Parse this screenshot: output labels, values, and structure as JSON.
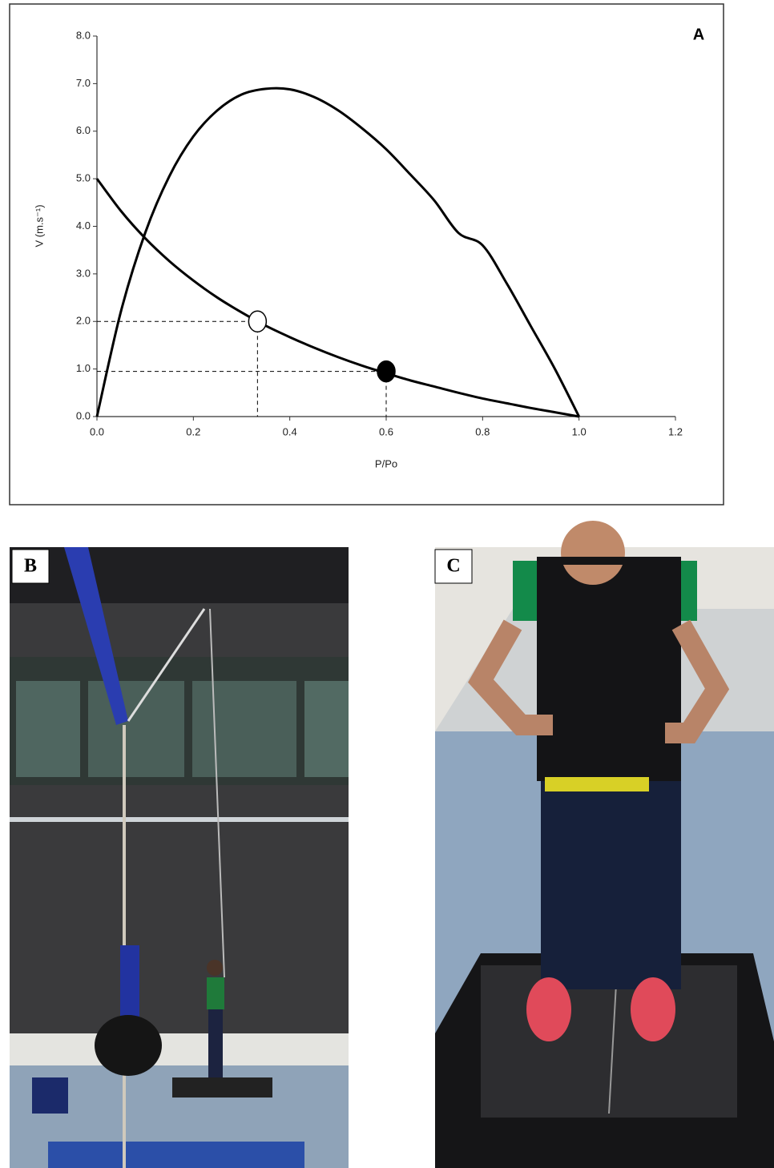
{
  "chart_data": {
    "type": "line",
    "panel_label": "A",
    "x_label": "P/Po",
    "y_label": "V (m.s⁻¹)",
    "x": [
      0,
      0.05,
      0.1,
      0.15,
      0.2,
      0.25,
      0.3,
      0.35,
      0.4,
      0.45,
      0.5,
      0.55,
      0.6,
      0.65,
      0.7,
      0.75,
      0.8,
      0.85,
      0.9,
      0.95,
      1.0
    ],
    "series": [
      {
        "color": "#000000",
        "values": [
          5.0,
          4.32,
          3.75,
          3.27,
          2.86,
          2.5,
          2.19,
          1.91,
          1.67,
          1.45,
          1.25,
          1.07,
          0.91,
          0.76,
          0.63,
          0.5,
          0.38,
          0.28,
          0.18,
          0.09,
          0
        ]
      },
      {
        "color": "#000000",
        "values": [
          0,
          2.22,
          3.86,
          5.05,
          5.89,
          6.44,
          6.77,
          6.89,
          6.88,
          6.72,
          6.44,
          6.06,
          5.62,
          5.09,
          4.54,
          3.86,
          3.6,
          2.8,
          1.9,
          1.0,
          0
        ]
      }
    ],
    "markers": {
      "x": [
        0.333,
        0.6
      ],
      "y": [
        2.0,
        0.95
      ],
      "fills": [
        "#ffffff",
        "#000000"
      ]
    },
    "xlim": [
      0,
      1.2
    ],
    "xticks": [
      {
        "value": 0,
        "label": "0.0"
      },
      0.2,
      0.4,
      0.6,
      0.8,
      {
        "value": 1,
        "label": "1.0"
      },
      1.2
    ],
    "ylim": [
      0,
      8
    ],
    "yticks": [
      {
        "value": 0,
        "label": "0.0"
      },
      {
        "value": 1,
        "label": "1.0"
      },
      {
        "value": 2,
        "label": "2.0"
      },
      {
        "value": 3,
        "label": "3.0"
      },
      {
        "value": 4,
        "label": "4.0"
      },
      {
        "value": 5,
        "label": "5.0"
      },
      {
        "value": 6,
        "label": "6.0"
      },
      {
        "value": 7,
        "label": "7.0"
      },
      {
        "value": 8,
        "label": "8.0"
      }
    ],
    "grid": false
  },
  "photos": {
    "labels": [
      "B",
      "C"
    ]
  }
}
